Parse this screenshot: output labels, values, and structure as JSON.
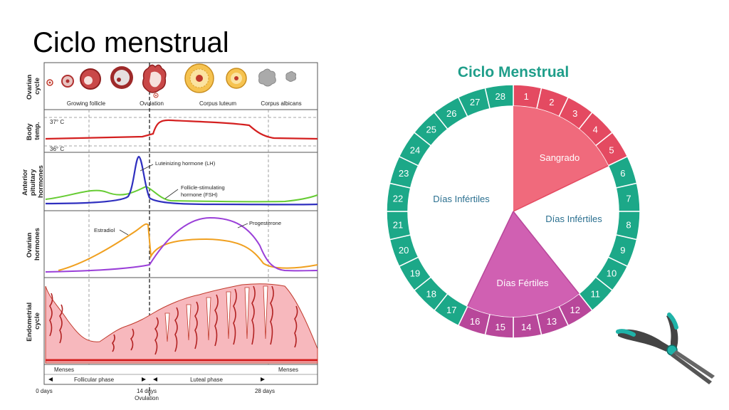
{
  "slide": {
    "title": "Ciclo menstrual"
  },
  "left_diagram": {
    "row_labels": {
      "ovarian_cycle": [
        "Ovarian",
        "cycle"
      ],
      "body_temp": [
        "Body",
        "temp."
      ],
      "pituitary": [
        "Anterior",
        "pituitary",
        "hormones"
      ],
      "ovarian_hormones": [
        "Ovarian",
        "hormones"
      ],
      "endometrial": [
        "Endometrial",
        "cycle"
      ]
    },
    "ovary_labels": {
      "growing_follicle": "Growing follicle",
      "ovulation": "Ovulation",
      "corpus_luteum": "Corpus luteum",
      "corpus_albicans": "Corpus albicans"
    },
    "temp_labels": {
      "high": "37° C",
      "low": "36° C"
    },
    "hormone_labels": {
      "lh": "Luteinizing hormone (LH)",
      "fsh_line1": "Follicle-stimulating",
      "fsh_line2": "hormone (FSH)",
      "estradiol": "Estradiol",
      "progesterone": "Progesterone"
    },
    "phase_labels": {
      "menses_left": "Menses",
      "menses_right": "Menses",
      "follicular": "Follicular phase",
      "luteal": "Luteal phase"
    },
    "day_labels": {
      "start": "0 days",
      "mid": "14 days",
      "mid_sub": "Ovulation",
      "end": "28 days"
    },
    "colors": {
      "lh": "#2f2fbf",
      "fsh": "#66cc33",
      "estradiol": "#f0a020",
      "progesterone": "#9a3fd8",
      "temp": "#d42020",
      "endometrium": "#f7b8bd",
      "vessel": "#d42020"
    }
  },
  "wheel": {
    "title": "Ciclo Menstrual",
    "days": [
      "1",
      "2",
      "3",
      "4",
      "5",
      "6",
      "7",
      "8",
      "9",
      "10",
      "11",
      "12",
      "13",
      "14",
      "15",
      "16",
      "17",
      "18",
      "19",
      "20",
      "21",
      "22",
      "23",
      "24",
      "25",
      "26",
      "27",
      "28"
    ],
    "segment_phase": [
      "bleed",
      "bleed",
      "bleed",
      "bleed",
      "bleed",
      "infertile",
      "infertile",
      "infertile",
      "infertile",
      "infertile",
      "infertile",
      "fertile",
      "fertile",
      "fertile",
      "fertile",
      "fertile",
      "infertile",
      "infertile",
      "infertile",
      "infertile",
      "infertile",
      "infertile",
      "infertile",
      "infertile",
      "infertile",
      "infertile",
      "infertile",
      "infertile"
    ],
    "sectors": {
      "sangrado": "Sangrado",
      "infertiles_right": "Días Infértiles",
      "fertiles": "Días Fértiles",
      "infertiles_left": "Días Infértiles"
    },
    "colors": {
      "bleed": "#e44a61",
      "bleed_light": "#f06a7c",
      "fertile": "#b8479a",
      "fertile_light": "#d060b2",
      "infertile": "#1ca888",
      "title": "#1f9e8a",
      "sector_text": "#2a6f8f"
    }
  },
  "decor": {
    "pliers_icon": "pliers-icon"
  }
}
